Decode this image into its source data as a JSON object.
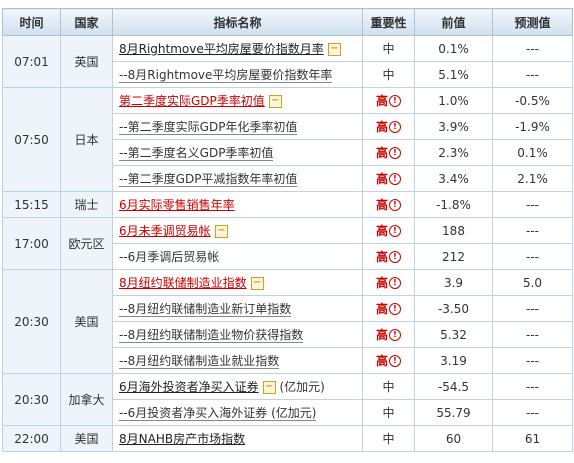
{
  "headers": {
    "time": "时间",
    "country": "国家",
    "name": "指标名称",
    "importance": "重要性",
    "previous": "前值",
    "forecast": "预测值"
  },
  "rows": [
    {
      "time": "07:01",
      "country": "英国",
      "name": "8月Rightmove平均房屋要价指数月率",
      "style": "main-black",
      "toggle": "−",
      "importance": "中",
      "previous": "0.1%",
      "forecast": "---"
    },
    {
      "name": "--8月Rightmove平均房屋要价指数年率",
      "style": "sub",
      "importance": "中",
      "previous": "5.1%",
      "forecast": "---"
    },
    {
      "time": "07:50",
      "country": "日本",
      "name": "第二季度实际GDP季率初值",
      "style": "main-red",
      "toggle": "−",
      "importance": "高",
      "previous": "1.0%",
      "forecast": "-0.5%"
    },
    {
      "name": "--第二季度实际GDP年化季率初值",
      "style": "sub",
      "importance": "高",
      "previous": "3.9%",
      "forecast": "-1.9%"
    },
    {
      "name": "--第二季度名义GDP季率初值",
      "style": "sub",
      "importance": "高",
      "previous": "2.3%",
      "forecast": "0.1%"
    },
    {
      "name": "--第二季度GDP平减指数年率初值",
      "style": "sub",
      "importance": "高",
      "previous": "3.4%",
      "forecast": "2.1%"
    },
    {
      "time": "15:15",
      "country": "瑞士",
      "name": "6月实际零售销售年率",
      "style": "main-red",
      "importance": "高",
      "previous": "-1.8%",
      "forecast": "---"
    },
    {
      "time": "17:00",
      "country": "欧元区",
      "name": "6月未季调贸易帐",
      "style": "main-red",
      "toggle": "−",
      "importance": "高",
      "previous": "188",
      "forecast": "---"
    },
    {
      "name": "--6月季调后贸易帐",
      "style": "sub-plain",
      "importance": "高",
      "previous": "212",
      "forecast": "---"
    },
    {
      "time": "20:30",
      "country": "美国",
      "name": "8月纽约联储制造业指数",
      "style": "main-red",
      "toggle": "−",
      "importance": "高",
      "previous": "3.9",
      "forecast": "5.0"
    },
    {
      "name": "--8月纽约联储制造业新订单指数",
      "style": "sub",
      "importance": "高",
      "previous": "-3.50",
      "forecast": "---"
    },
    {
      "name": "--8月纽约联储制造业物价获得指数",
      "style": "sub",
      "importance": "高",
      "previous": "5.32",
      "forecast": "---"
    },
    {
      "name": "--8月纽约联储制造业就业指数",
      "style": "sub",
      "importance": "高",
      "previous": "3.19",
      "forecast": "---"
    },
    {
      "time": "20:30",
      "country": "加拿大",
      "name": "6月海外投资者净买入证券",
      "suffix": " (亿加元)",
      "style": "main-black",
      "toggle": "−",
      "importance": "中",
      "previous": "-54.5",
      "forecast": "---"
    },
    {
      "name": "--6月投资者净买入海外证券 (亿加元)",
      "style": "sub",
      "importance": "中",
      "previous": "55.79",
      "forecast": "---"
    },
    {
      "time": "22:00",
      "country": "美国",
      "name": "8月NAHB房产市场指数",
      "style": "main-black",
      "importance": "中",
      "previous": "60",
      "forecast": "61"
    }
  ]
}
